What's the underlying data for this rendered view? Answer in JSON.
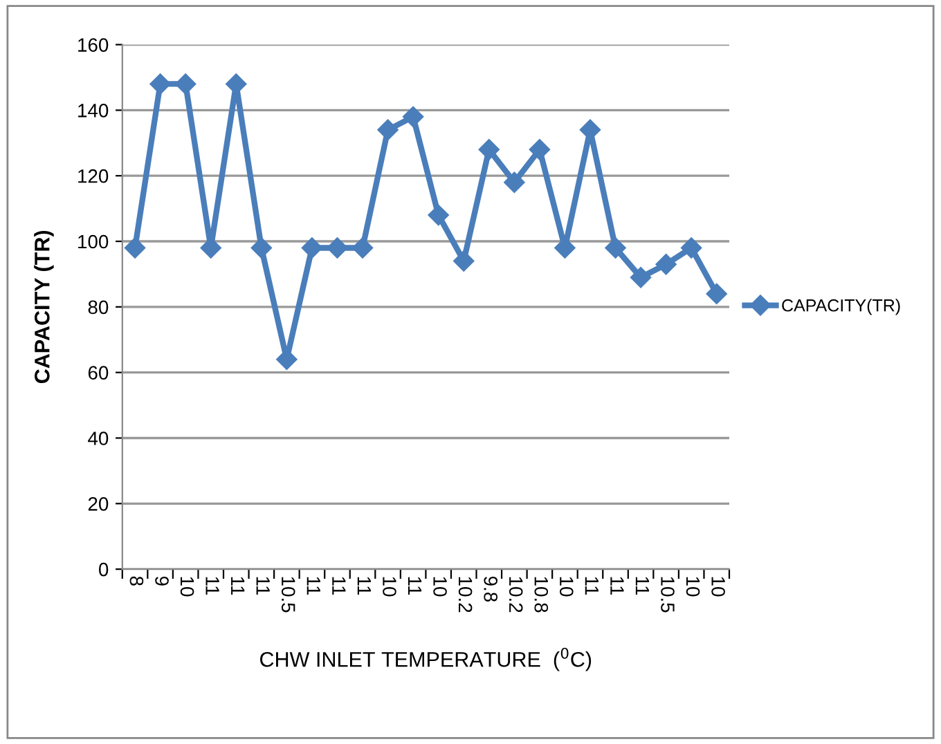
{
  "chart_data": {
    "type": "line",
    "xlabel": "CHW INLET TEMPERATURE  ($^{0}$C)",
    "ylabel": "CAPACITY (TR)",
    "categories": [
      "8",
      "9",
      "10",
      "11",
      "11",
      "11",
      "10.5",
      "11",
      "11",
      "11",
      "10",
      "11",
      "10",
      "10.2",
      "9.8",
      "10.2",
      "10.8",
      "10",
      "11",
      "11",
      "11",
      "10.5",
      "10",
      "10"
    ],
    "series": [
      {
        "name": "CAPACITY(TR)",
        "color": "#4a7ebb",
        "values": [
          98,
          148,
          148,
          98,
          148,
          98,
          64,
          98,
          98,
          98,
          134,
          138,
          108,
          94,
          128,
          118,
          128,
          98,
          134,
          98,
          89,
          93,
          98,
          84
        ]
      }
    ],
    "ylim": [
      0,
      160
    ],
    "yticks": [
      0,
      20,
      40,
      60,
      80,
      100,
      120,
      140,
      160
    ],
    "grid": "y",
    "legend": "right",
    "marker": "diamond",
    "line_style": "solid"
  }
}
